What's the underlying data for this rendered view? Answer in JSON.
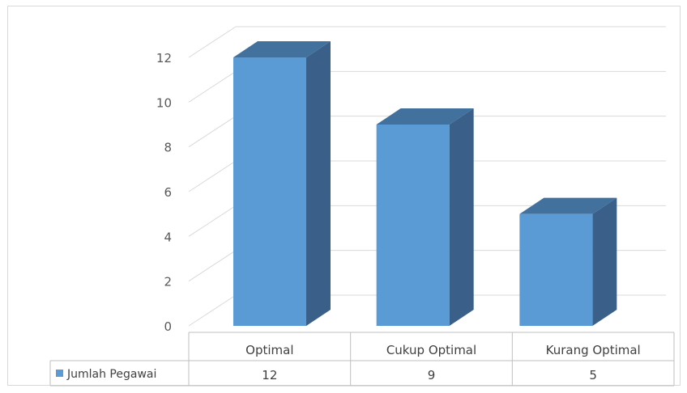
{
  "chart_data": {
    "type": "bar",
    "categories": [
      "Optimal",
      "Cukup Optimal",
      "Kurang Optimal"
    ],
    "series": [
      {
        "name": "Jumlah Pegawai",
        "values": [
          12,
          9,
          5
        ]
      }
    ],
    "y_ticks": [
      "0",
      "2",
      "4",
      "6",
      "8",
      "10",
      "12"
    ],
    "ylim": [
      0,
      12
    ],
    "grid": true,
    "legend": "data-table",
    "colors": {
      "bar_front": "#5b9bd5",
      "bar_side": "#3a6089",
      "bar_top": "#41719c",
      "grid": "#d9d9d9",
      "axis_text": "#595959"
    }
  }
}
